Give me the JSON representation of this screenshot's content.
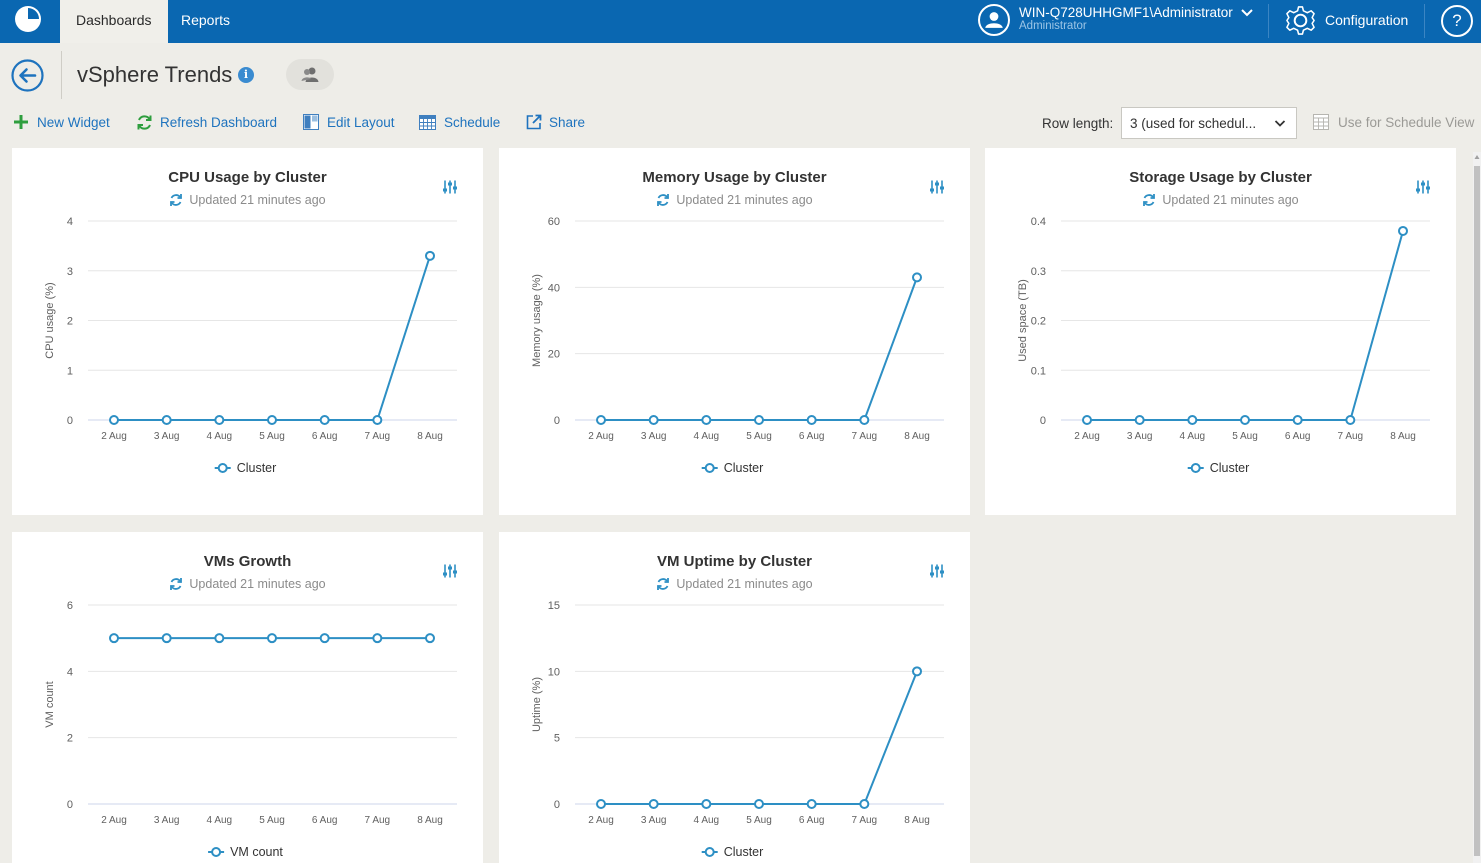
{
  "topbar": {
    "tabs": [
      {
        "label": "Dashboards",
        "active": true
      },
      {
        "label": "Reports",
        "active": false
      }
    ],
    "user_name": "WIN-Q728UHHGMF1\\Administrator",
    "user_role": "Administrator",
    "config_label": "Configuration",
    "help_label": "?"
  },
  "header": {
    "title": "vSphere Trends",
    "info_label": "i"
  },
  "toolbar": {
    "new_widget": "New Widget",
    "refresh": "Refresh Dashboard",
    "edit_layout": "Edit Layout",
    "schedule": "Schedule",
    "share": "Share",
    "row_length_label": "Row length:",
    "row_length_value": "3 (used for schedul...",
    "schedule_view": "Use for Schedule View"
  },
  "colors": {
    "accent": "#0a67b1",
    "series": "#2d8fc4",
    "link": "#1e73be",
    "green_icon": "#2e9e3e"
  },
  "chart_data": [
    {
      "type": "line",
      "title": "CPU Usage by Cluster",
      "subtitle": "Updated 21 minutes ago",
      "ylabel": "CPU usage (%)",
      "xlabel": "",
      "x": [
        "2 Aug",
        "3 Aug",
        "4 Aug",
        "5 Aug",
        "6 Aug",
        "7 Aug",
        "8 Aug"
      ],
      "yticks": [
        "0",
        "1",
        "2",
        "3",
        "4"
      ],
      "ylim": [
        0,
        4
      ],
      "series": [
        {
          "name": "Cluster",
          "values": [
            0,
            0,
            0,
            0,
            0,
            0,
            3.3
          ]
        }
      ],
      "grid": true,
      "legend": "bottom"
    },
    {
      "type": "line",
      "title": "Memory Usage by Cluster",
      "subtitle": "Updated 21 minutes ago",
      "ylabel": "Memory usage (%)",
      "xlabel": "",
      "x": [
        "2 Aug",
        "3 Aug",
        "4 Aug",
        "5 Aug",
        "6 Aug",
        "7 Aug",
        "8 Aug"
      ],
      "yticks": [
        "0",
        "20",
        "40",
        "60"
      ],
      "ylim": [
        0,
        60
      ],
      "series": [
        {
          "name": "Cluster",
          "values": [
            0,
            0,
            0,
            0,
            0,
            0,
            43
          ]
        }
      ],
      "grid": true,
      "legend": "bottom"
    },
    {
      "type": "line",
      "title": "Storage Usage by Cluster",
      "subtitle": "Updated 21 minutes ago",
      "ylabel": "Used space (TB)",
      "xlabel": "",
      "x": [
        "2 Aug",
        "3 Aug",
        "4 Aug",
        "5 Aug",
        "6 Aug",
        "7 Aug",
        "8 Aug"
      ],
      "yticks": [
        "0",
        "0.1",
        "0.2",
        "0.3",
        "0.4"
      ],
      "ylim": [
        0,
        0.4
      ],
      "series": [
        {
          "name": "Cluster",
          "values": [
            0,
            0,
            0,
            0,
            0,
            0,
            0.38
          ]
        }
      ],
      "grid": true,
      "legend": "bottom"
    },
    {
      "type": "line",
      "title": "VMs Growth",
      "subtitle": "Updated 21 minutes ago",
      "ylabel": "VM count",
      "xlabel": "",
      "x": [
        "2 Aug",
        "3 Aug",
        "4 Aug",
        "5 Aug",
        "6 Aug",
        "7 Aug",
        "8 Aug"
      ],
      "yticks": [
        "0",
        "2",
        "4",
        "6"
      ],
      "ylim": [
        0,
        6
      ],
      "series": [
        {
          "name": "VM count",
          "values": [
            5,
            5,
            5,
            5,
            5,
            5,
            5
          ]
        }
      ],
      "grid": true,
      "legend": "bottom"
    },
    {
      "type": "line",
      "title": "VM Uptime by Cluster",
      "subtitle": "Updated 21 minutes ago",
      "ylabel": "Uptime (%)",
      "xlabel": "",
      "x": [
        "2 Aug",
        "3 Aug",
        "4 Aug",
        "5 Aug",
        "6 Aug",
        "7 Aug",
        "8 Aug"
      ],
      "yticks": [
        "0",
        "5",
        "10",
        "15"
      ],
      "ylim": [
        0,
        15
      ],
      "series": [
        {
          "name": "Cluster",
          "values": [
            0,
            0,
            0,
            0,
            0,
            0,
            10
          ]
        }
      ],
      "grid": true,
      "legend": "bottom"
    }
  ]
}
